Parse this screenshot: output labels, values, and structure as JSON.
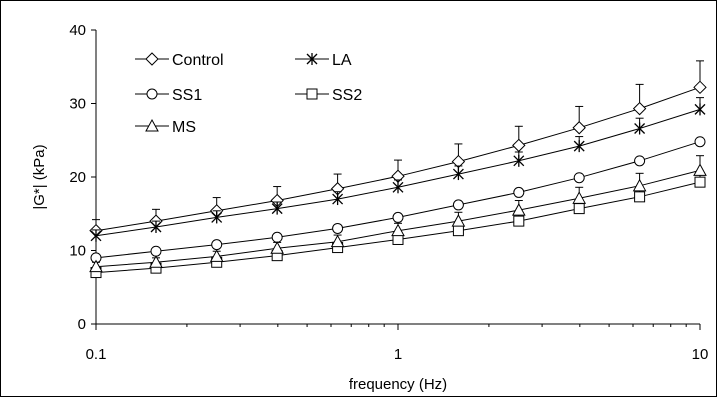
{
  "chart_data": {
    "type": "line",
    "title": "",
    "xlabel": "frequency (Hz)",
    "ylabel": "|G*| (kPa)",
    "xscale": "log",
    "xlim": [
      0.1,
      10
    ],
    "ylim": [
      0,
      40
    ],
    "grid": false,
    "legend_position": "top-left",
    "x_ticks": [
      {
        "value": 0.1,
        "label": "0.1"
      },
      {
        "value": 1,
        "label": "1"
      },
      {
        "value": 10,
        "label": "10"
      }
    ],
    "y_ticks": [
      {
        "value": 0,
        "label": "0"
      },
      {
        "value": 10,
        "label": "10"
      },
      {
        "value": 20,
        "label": "20"
      },
      {
        "value": 30,
        "label": "30"
      },
      {
        "value": 40,
        "label": "40"
      }
    ],
    "x": [
      0.1,
      0.158,
      0.251,
      0.398,
      0.631,
      1,
      1.585,
      2.512,
      3.981,
      6.31,
      10
    ],
    "series": [
      {
        "name": "Control",
        "marker": "diamond",
        "values": [
          12.7,
          14.0,
          15.4,
          16.8,
          18.4,
          20.1,
          22.1,
          24.3,
          26.7,
          29.3,
          32.2
        ],
        "error": [
          1.5,
          1.6,
          1.8,
          1.9,
          2.0,
          2.2,
          2.4,
          2.6,
          2.9,
          3.3,
          3.6
        ]
      },
      {
        "name": "LA",
        "marker": "asterisk",
        "values": [
          12.0,
          13.2,
          14.5,
          15.7,
          17.0,
          18.6,
          20.4,
          22.2,
          24.2,
          26.6,
          29.2
        ],
        "error": [
          0.8,
          0.8,
          0.9,
          0.9,
          1.0,
          1.0,
          1.1,
          1.2,
          1.3,
          1.4,
          1.6
        ]
      },
      {
        "name": "SS1",
        "marker": "circle",
        "values": [
          9.0,
          9.9,
          10.8,
          11.8,
          13.0,
          14.5,
          16.2,
          17.9,
          19.9,
          22.2,
          24.8
        ],
        "error": [
          0,
          0,
          0,
          0,
          0,
          0,
          0,
          0,
          0,
          0,
          0
        ]
      },
      {
        "name": "SS2",
        "marker": "square",
        "values": [
          7.0,
          7.6,
          8.4,
          9.3,
          10.4,
          11.5,
          12.7,
          14.0,
          15.7,
          17.3,
          19.3
        ],
        "error": [
          0.5,
          0.5,
          0.6,
          0.6,
          0.7,
          0.8,
          1.0,
          1.0,
          1.2,
          1.3,
          1.5
        ]
      },
      {
        "name": "MS",
        "marker": "triangle",
        "values": [
          7.8,
          8.4,
          9.2,
          10.3,
          11.2,
          12.7,
          14.0,
          15.5,
          17.1,
          18.8,
          20.9
        ],
        "error": [
          0.6,
          0.6,
          0.7,
          0.8,
          0.9,
          1.0,
          1.2,
          1.3,
          1.5,
          1.7,
          2.0
        ]
      }
    ]
  }
}
